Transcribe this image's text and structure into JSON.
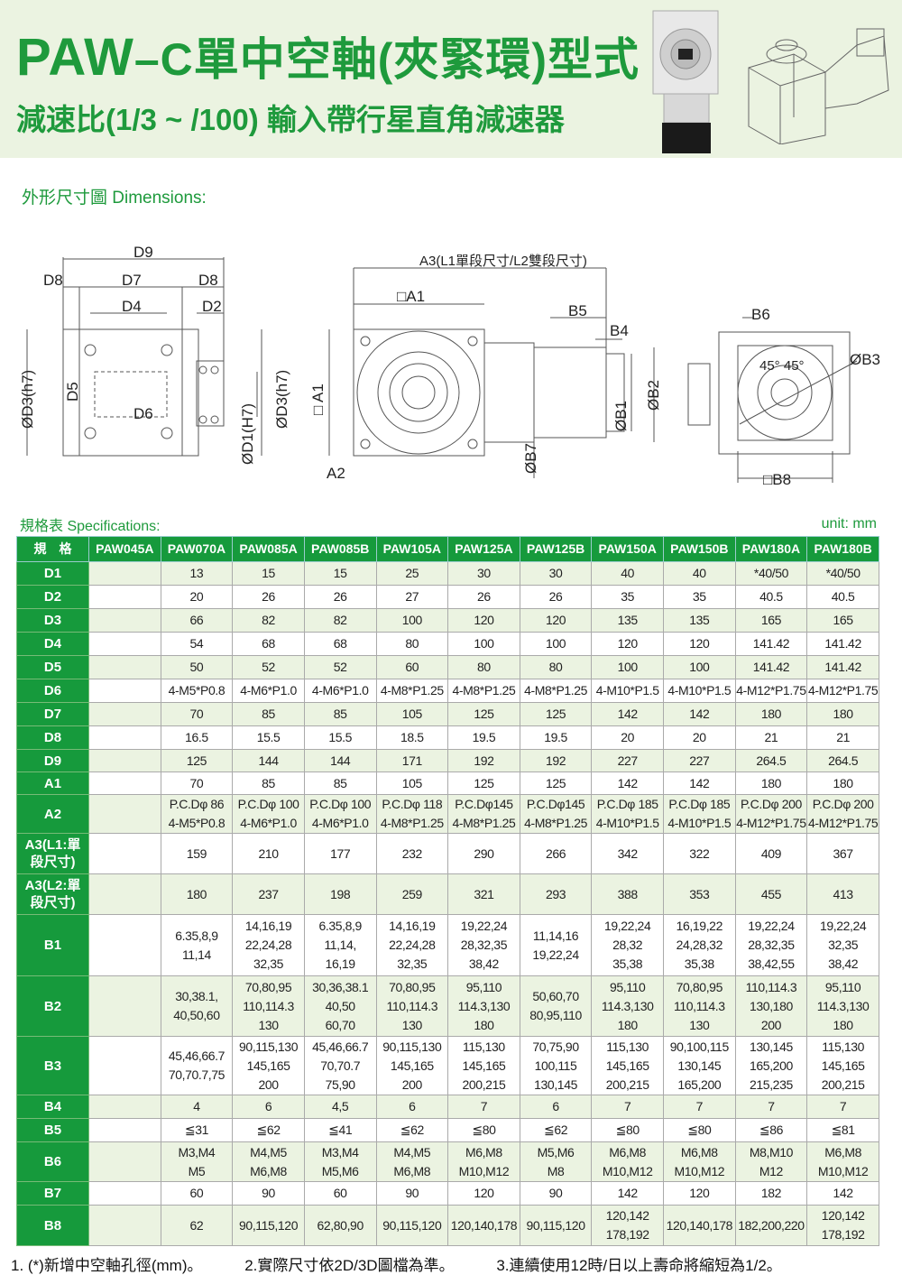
{
  "header": {
    "title_prefix": "PAW",
    "title_rest": "–C單中空軸(夾緊環)型式",
    "subtitle": "減速比(1/3 ~ /100) 輸入帶行星直角減速器"
  },
  "colors": {
    "brand_green": "#1e9a3c",
    "header_bg": "#169a3c",
    "row_shade": "#ebf3e1"
  },
  "dimensions_heading": "外形尺寸圖 Dimensions:",
  "drawing_labels": {
    "d9": "D9",
    "d8a": "D8",
    "d7": "D7",
    "d8b": "D8",
    "d4": "D4",
    "d2": "D2",
    "d3a": "ØD3(h7)",
    "d5": "D5",
    "d6": "D6",
    "d1": "ØD1(H7)",
    "d3b": "ØD3(h7)",
    "a3": "A3(L1單段尺寸/L2雙段尺寸)",
    "a1": "□A1",
    "a1v": "□ A1",
    "a2": "A2",
    "b5": "B5",
    "b4": "B4",
    "b7": "ØB7",
    "b1": "ØB1",
    "b2": "ØB2",
    "b6": "B6",
    "angle": "45° 45°",
    "b3": "ØB3",
    "b8": "□B8"
  },
  "specs_heading": "規格表 Specifications:",
  "unit": "unit: mm",
  "table": {
    "corner": "規　格",
    "models": [
      "PAW045A",
      "PAW070A",
      "PAW085A",
      "PAW085B",
      "PAW105A",
      "PAW125A",
      "PAW125B",
      "PAW150A",
      "PAW150B",
      "PAW180A",
      "PAW180B"
    ],
    "rows": [
      {
        "label": "D1",
        "values": [
          "",
          "13",
          "15",
          "15",
          "25",
          "30",
          "30",
          "40",
          "40",
          "*40/50",
          "*40/50"
        ]
      },
      {
        "label": "D2",
        "values": [
          "",
          "20",
          "26",
          "26",
          "27",
          "26",
          "26",
          "35",
          "35",
          "40.5",
          "40.5"
        ]
      },
      {
        "label": "D3",
        "values": [
          "",
          "66",
          "82",
          "82",
          "100",
          "120",
          "120",
          "135",
          "135",
          "165",
          "165"
        ]
      },
      {
        "label": "D4",
        "values": [
          "",
          "54",
          "68",
          "68",
          "80",
          "100",
          "100",
          "120",
          "120",
          "141.42",
          "141.42"
        ]
      },
      {
        "label": "D5",
        "values": [
          "",
          "50",
          "52",
          "52",
          "60",
          "80",
          "80",
          "100",
          "100",
          "141.42",
          "141.42"
        ]
      },
      {
        "label": "D6",
        "values": [
          "",
          "4-M5*P0.8",
          "4-M6*P1.0",
          "4-M6*P1.0",
          "4-M8*P1.25",
          "4-M8*P1.25",
          "4-M8*P1.25",
          "4-M10*P1.5",
          "4-M10*P1.5",
          "4-M12*P1.75",
          "4-M12*P1.75"
        ]
      },
      {
        "label": "D7",
        "values": [
          "",
          "70",
          "85",
          "85",
          "105",
          "125",
          "125",
          "142",
          "142",
          "180",
          "180"
        ]
      },
      {
        "label": "D8",
        "values": [
          "",
          "16.5",
          "15.5",
          "15.5",
          "18.5",
          "19.5",
          "19.5",
          "20",
          "20",
          "21",
          "21"
        ]
      },
      {
        "label": "D9",
        "values": [
          "",
          "125",
          "144",
          "144",
          "171",
          "192",
          "192",
          "227",
          "227",
          "264.5",
          "264.5"
        ]
      },
      {
        "label": "A1",
        "values": [
          "",
          "70",
          "85",
          "85",
          "105",
          "125",
          "125",
          "142",
          "142",
          "180",
          "180"
        ]
      },
      {
        "label": "A2",
        "values": [
          "",
          "P.C.Dφ 86\n4-M5*P0.8",
          "P.C.Dφ 100\n4-M6*P1.0",
          "P.C.Dφ 100\n4-M6*P1.0",
          "P.C.Dφ 118\n4-M8*P1.25",
          "P.C.Dφ145\n4-M8*P1.25",
          "P.C.Dφ145\n4-M8*P1.25",
          "P.C.Dφ 185\n4-M10*P1.5",
          "P.C.Dφ 185\n4-M10*P1.5",
          "P.C.Dφ 200\n4-M12*P1.75",
          "P.C.Dφ 200\n4-M12*P1.75"
        ]
      },
      {
        "label": "A3(L1:單\n段尺寸)",
        "values": [
          "",
          "159",
          "210",
          "177",
          "232",
          "290",
          "266",
          "342",
          "322",
          "409",
          "367"
        ]
      },
      {
        "label": "A3(L2:單\n段尺寸)",
        "values": [
          "",
          "180",
          "237",
          "198",
          "259",
          "321",
          "293",
          "388",
          "353",
          "455",
          "413"
        ]
      },
      {
        "label": "B1",
        "values": [
          "",
          "6.35,8,9\n11,14",
          "14,16,19\n22,24,28\n32,35",
          "6.35,8,9\n11,14,\n16,19",
          "14,16,19\n22,24,28\n32,35",
          "19,22,24\n28,32,35\n38,42",
          "11,14,16\n19,22,24",
          "19,22,24\n28,32\n35,38",
          "16,19,22\n24,28,32\n35,38",
          "19,22,24\n28,32,35\n38,42,55",
          "19,22,24\n32,35\n38,42"
        ]
      },
      {
        "label": "B2",
        "values": [
          "",
          "30,38.1,\n40,50,60",
          "70,80,95\n110,114.3\n130",
          "30,36,38.1\n40,50\n60,70",
          "70,80,95\n110,114.3\n130",
          "95,110\n114.3,130\n180",
          "50,60,70\n80,95,110",
          "95,110\n114.3,130\n180",
          "70,80,95\n110,114.3\n130",
          "110,114.3\n130,180\n200",
          "95,110\n114.3,130\n180"
        ]
      },
      {
        "label": "B3",
        "values": [
          "",
          "45,46,66.7\n70,70.7,75",
          "90,115,130\n145,165\n200",
          "45,46,66.7\n70,70.7\n75,90",
          "90,115,130\n145,165\n200",
          "115,130\n145,165\n200,215",
          "70,75,90\n100,115\n130,145",
          "115,130\n145,165\n200,215",
          "90,100,115\n130,145\n165,200",
          "130,145\n165,200\n215,235",
          "115,130\n145,165\n200,215"
        ]
      },
      {
        "label": "B4",
        "values": [
          "",
          "4",
          "6",
          "4,5",
          "6",
          "7",
          "6",
          "7",
          "7",
          "7",
          "7"
        ]
      },
      {
        "label": "B5",
        "values": [
          "",
          "≦31",
          "≦62",
          "≦41",
          "≦62",
          "≦80",
          "≦62",
          "≦80",
          "≦80",
          "≦86",
          "≦81"
        ]
      },
      {
        "label": "B6",
        "values": [
          "",
          "M3,M4\nM5",
          "M4,M5\nM6,M8",
          "M3,M4\nM5,M6",
          "M4,M5\nM6,M8",
          "M6,M8\nM10,M12",
          "M5,M6\nM8",
          "M6,M8\nM10,M12",
          "M6,M8\nM10,M12",
          "M8,M10\nM12",
          "M6,M8\nM10,M12"
        ]
      },
      {
        "label": "B7",
        "values": [
          "",
          "60",
          "90",
          "60",
          "90",
          "120",
          "90",
          "142",
          "120",
          "182",
          "142"
        ]
      },
      {
        "label": "B8",
        "values": [
          "",
          "62",
          "90,115,120",
          "62,80,90",
          "90,115,120",
          "120,140,178",
          "90,115,120",
          "120,142\n178,192",
          "120,140,178",
          "182,200,220",
          "120,142\n178,192"
        ]
      }
    ]
  },
  "notes": [
    "1. (*)新增中空軸孔徑(mm)。",
    "2.實際尺寸依2D/3D圖檔為準。",
    "3.連續使用12時/日以上壽命將縮短為1/2。"
  ]
}
